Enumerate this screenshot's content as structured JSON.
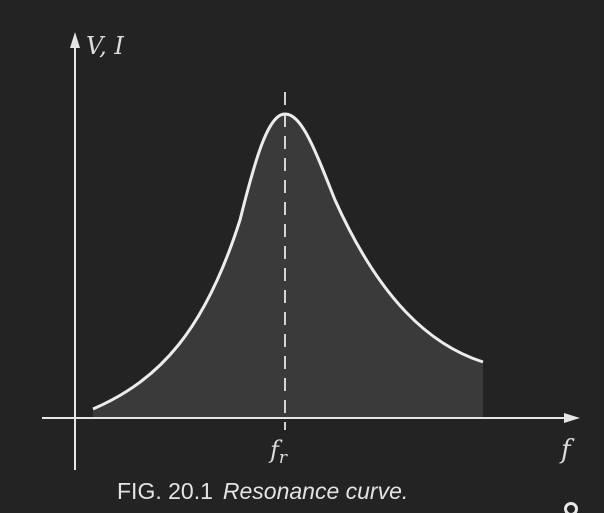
{
  "diagram": {
    "y_axis_label": "V, I",
    "x_axis_label": "f",
    "peak_label_main": "f",
    "peak_label_sub": "r"
  },
  "caption": {
    "figure_number": "FIG. 20.1",
    "figure_text": "Resonance curve."
  },
  "colors": {
    "background": "#232323",
    "axes": "#e6e6e6",
    "curve": "#ececec",
    "fill": "#3a3a3a",
    "text": "#dcdcdc"
  }
}
